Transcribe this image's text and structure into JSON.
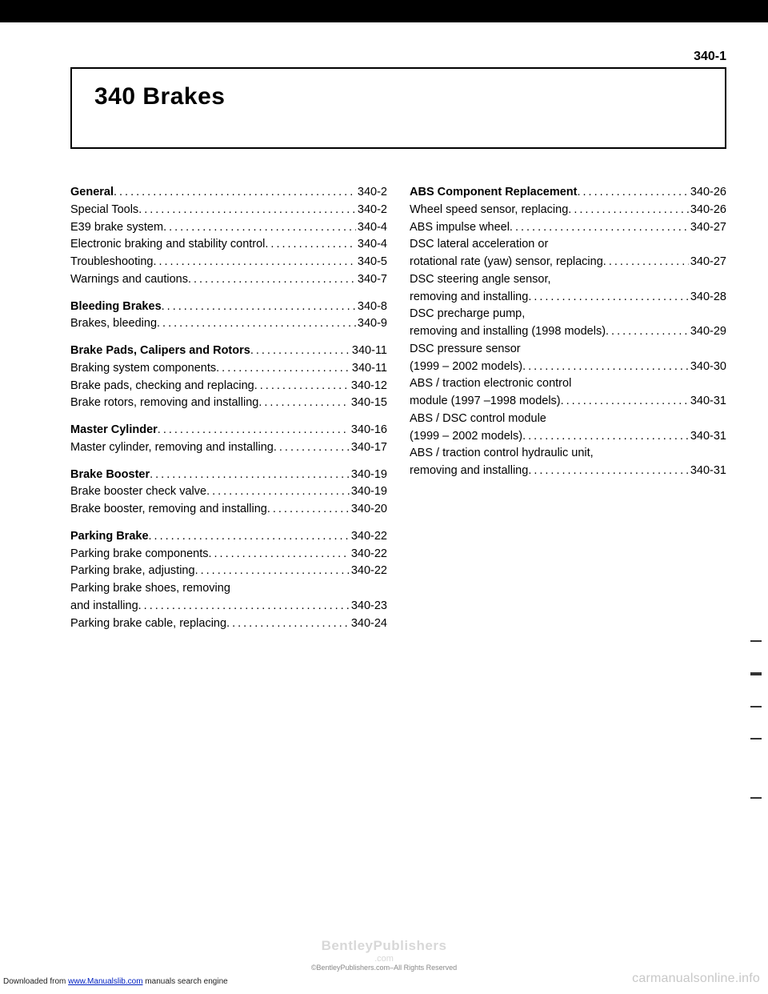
{
  "page_header": "340-1",
  "chapter_title": "340  Brakes",
  "columns": [
    [
      {
        "type": "group",
        "items": [
          {
            "label": "General",
            "bold": true,
            "page": "340-2"
          },
          {
            "label": "Special Tools",
            "page": "340-2"
          },
          {
            "label": "E39 brake system",
            "page": "340-4"
          },
          {
            "label": "Electronic braking and stability control",
            "page": "340-4"
          },
          {
            "label": "Troubleshooting",
            "page": "340-5"
          },
          {
            "label": "Warnings and cautions",
            "page": "340-7"
          }
        ]
      },
      {
        "type": "group",
        "items": [
          {
            "label": "Bleeding Brakes",
            "bold": true,
            "page": "340-8"
          },
          {
            "label": "Brakes, bleeding",
            "page": "340-9"
          }
        ]
      },
      {
        "type": "group",
        "items": [
          {
            "label": "Brake Pads, Calipers and Rotors",
            "bold": true,
            "page": "340-11"
          },
          {
            "label": "Braking system components",
            "page": "340-11"
          },
          {
            "label": "Brake pads, checking and replacing",
            "page": "340-12"
          },
          {
            "label": "Brake rotors, removing and installing",
            "page": "340-15"
          }
        ]
      },
      {
        "type": "group",
        "items": [
          {
            "label": "Master Cylinder",
            "bold": true,
            "page": "340-16"
          },
          {
            "label": "Master cylinder, removing and installing",
            "page": "340-17"
          }
        ]
      },
      {
        "type": "group",
        "items": [
          {
            "label": "Brake Booster",
            "bold": true,
            "page": "340-19"
          },
          {
            "label": "Brake booster check valve",
            "page": "340-19"
          },
          {
            "label": "Brake booster, removing and installing",
            "page": "340-20"
          }
        ]
      },
      {
        "type": "group",
        "items": [
          {
            "label": "Parking Brake",
            "bold": true,
            "page": "340-22"
          },
          {
            "label": "Parking brake components",
            "page": "340-22"
          },
          {
            "label": "Parking brake, adjusting",
            "page": "340-22"
          },
          {
            "cont": "Parking brake shoes, removing"
          },
          {
            "label": "and installing",
            "page": "340-23"
          },
          {
            "label": "Parking brake cable, replacing",
            "page": "340-24"
          }
        ]
      }
    ],
    [
      {
        "type": "group",
        "items": [
          {
            "label": "ABS Component Replacement",
            "bold": true,
            "page": "340-26"
          },
          {
            "label": "Wheel speed sensor, replacing",
            "page": "340-26"
          },
          {
            "label": "ABS impulse wheel",
            "page": "340-27"
          },
          {
            "cont": "DSC lateral acceleration or"
          },
          {
            "label": "rotational rate (yaw) sensor, replacing",
            "page": "340-27"
          },
          {
            "cont": "DSC steering angle sensor,"
          },
          {
            "label": "removing and installing",
            "page": "340-28"
          },
          {
            "cont": "DSC precharge pump,"
          },
          {
            "label": "removing and installing (1998 models)",
            "page": "340-29"
          },
          {
            "cont": "DSC pressure sensor"
          },
          {
            "label": "(1999 – 2002 models)",
            "page": "340-30"
          },
          {
            "cont": "ABS / traction electronic control"
          },
          {
            "label": "module (1997 –1998 models)",
            "page": "340-31"
          },
          {
            "cont": "ABS / DSC control module"
          },
          {
            "label": "(1999 – 2002 models)",
            "page": "340-31"
          },
          {
            "cont": "ABS / traction control hydraulic unit,"
          },
          {
            "label": "removing and installing",
            "page": "340-31"
          }
        ]
      }
    ]
  ],
  "footer": {
    "left_prefix": "Downloaded from ",
    "left_link": "www.Manualslib.com",
    "left_suffix": " manuals search engine",
    "wm_main": "BentleyPublishers",
    "wm_sub": ".com",
    "center_small": "©BentleyPublishers.com–All Rights Reserved",
    "right": "carmanualsonline.info"
  }
}
